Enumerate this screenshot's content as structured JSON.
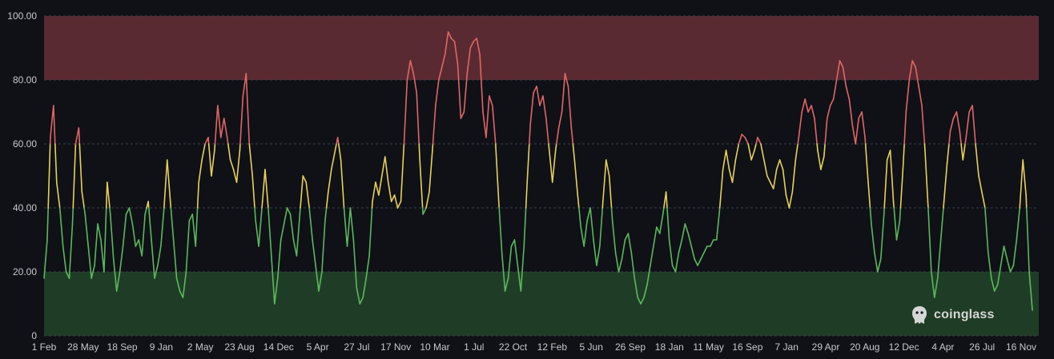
{
  "chart_data": {
    "type": "line",
    "title": "",
    "xlabel": "",
    "ylabel": "",
    "ylim": [
      0,
      100
    ],
    "y_ticks": [
      "0",
      "20.00",
      "40.00",
      "60.00",
      "80.00",
      "100.00"
    ],
    "x_ticks": [
      "1 Feb",
      "28 May",
      "18 Sep",
      "9 Jan",
      "2 May",
      "23 Aug",
      "14 Dec",
      "5 Apr",
      "27 Jul",
      "17 Nov",
      "10 Mar",
      "1 Jul",
      "22 Oct",
      "12 Feb",
      "5 Jun",
      "26 Sep",
      "18 Jan",
      "11 May",
      "16 Sep",
      "7 Jan",
      "29 Apr",
      "20 Aug",
      "12 Dec",
      "4 Apr",
      "26 Jul",
      "16 Nov"
    ],
    "grid": "horizontal-dashed",
    "zones": [
      {
        "from": 0,
        "to": 20,
        "color": "#1f3d26"
      },
      {
        "from": 80,
        "to": 100,
        "color": "#5a2a32"
      }
    ],
    "color_bands": [
      {
        "from": 0,
        "to": 40,
        "color": "#5cb85c"
      },
      {
        "from": 40,
        "to": 60,
        "color": "#e8d05a"
      },
      {
        "from": 60,
        "to": 100,
        "color": "#e06666"
      }
    ],
    "series": [
      {
        "values": [
          18,
          30,
          62,
          72,
          48,
          40,
          28,
          20,
          18,
          35,
          60,
          65,
          45,
          38,
          28,
          18,
          22,
          35,
          30,
          20,
          48,
          38,
          24,
          14,
          20,
          28,
          38,
          40,
          35,
          28,
          30,
          25,
          38,
          42,
          30,
          18,
          22,
          28,
          40,
          55,
          42,
          30,
          18,
          14,
          12,
          20,
          36,
          38,
          28,
          48,
          55,
          60,
          62,
          50,
          58,
          72,
          62,
          68,
          62,
          55,
          52,
          48,
          58,
          75,
          82,
          60,
          50,
          36,
          28,
          40,
          52,
          40,
          25,
          10,
          18,
          30,
          35,
          40,
          38,
          30,
          25,
          38,
          50,
          48,
          40,
          30,
          22,
          14,
          20,
          36,
          45,
          52,
          57,
          62,
          55,
          40,
          28,
          40,
          30,
          15,
          10,
          12,
          18,
          25,
          42,
          48,
          44,
          50,
          56,
          48,
          42,
          44,
          40,
          42,
          60,
          80,
          86,
          82,
          76,
          55,
          38,
          40,
          45,
          58,
          72,
          80,
          84,
          88,
          95,
          93,
          92,
          85,
          68,
          70,
          82,
          90,
          92,
          93,
          88,
          70,
          62,
          75,
          72,
          60,
          42,
          26,
          14,
          18,
          28,
          30,
          22,
          14,
          28,
          48,
          66,
          76,
          78,
          72,
          75,
          68,
          58,
          48,
          58,
          65,
          70,
          82,
          78,
          65,
          55,
          44,
          34,
          28,
          36,
          40,
          30,
          22,
          28,
          42,
          55,
          50,
          36,
          26,
          20,
          24,
          30,
          32,
          26,
          18,
          12,
          10,
          12,
          16,
          22,
          28,
          34,
          32,
          38,
          45,
          30,
          22,
          20,
          26,
          30,
          35,
          32,
          28,
          24,
          22,
          24,
          26,
          28,
          28,
          30,
          30,
          40,
          52,
          58,
          52,
          48,
          55,
          60,
          63,
          62,
          60,
          55,
          58,
          62,
          60,
          55,
          50,
          48,
          46,
          52,
          55,
          52,
          44,
          40,
          45,
          55,
          62,
          70,
          74,
          70,
          72,
          68,
          58,
          52,
          56,
          68,
          72,
          74,
          80,
          86,
          84,
          78,
          74,
          66,
          60,
          68,
          70,
          62,
          48,
          35,
          26,
          20,
          24,
          38,
          55,
          58,
          42,
          30,
          36,
          52,
          70,
          80,
          86,
          84,
          78,
          72,
          58,
          40,
          20,
          12,
          18,
          30,
          42,
          54,
          64,
          68,
          70,
          64,
          55,
          62,
          70,
          72,
          60,
          50,
          45,
          40,
          26,
          18,
          14,
          16,
          22,
          28,
          24,
          20,
          22,
          30,
          40,
          55,
          44,
          20,
          8
        ]
      }
    ]
  },
  "watermark": {
    "text": "coinglass",
    "icon": "coinglass-logo-icon"
  }
}
